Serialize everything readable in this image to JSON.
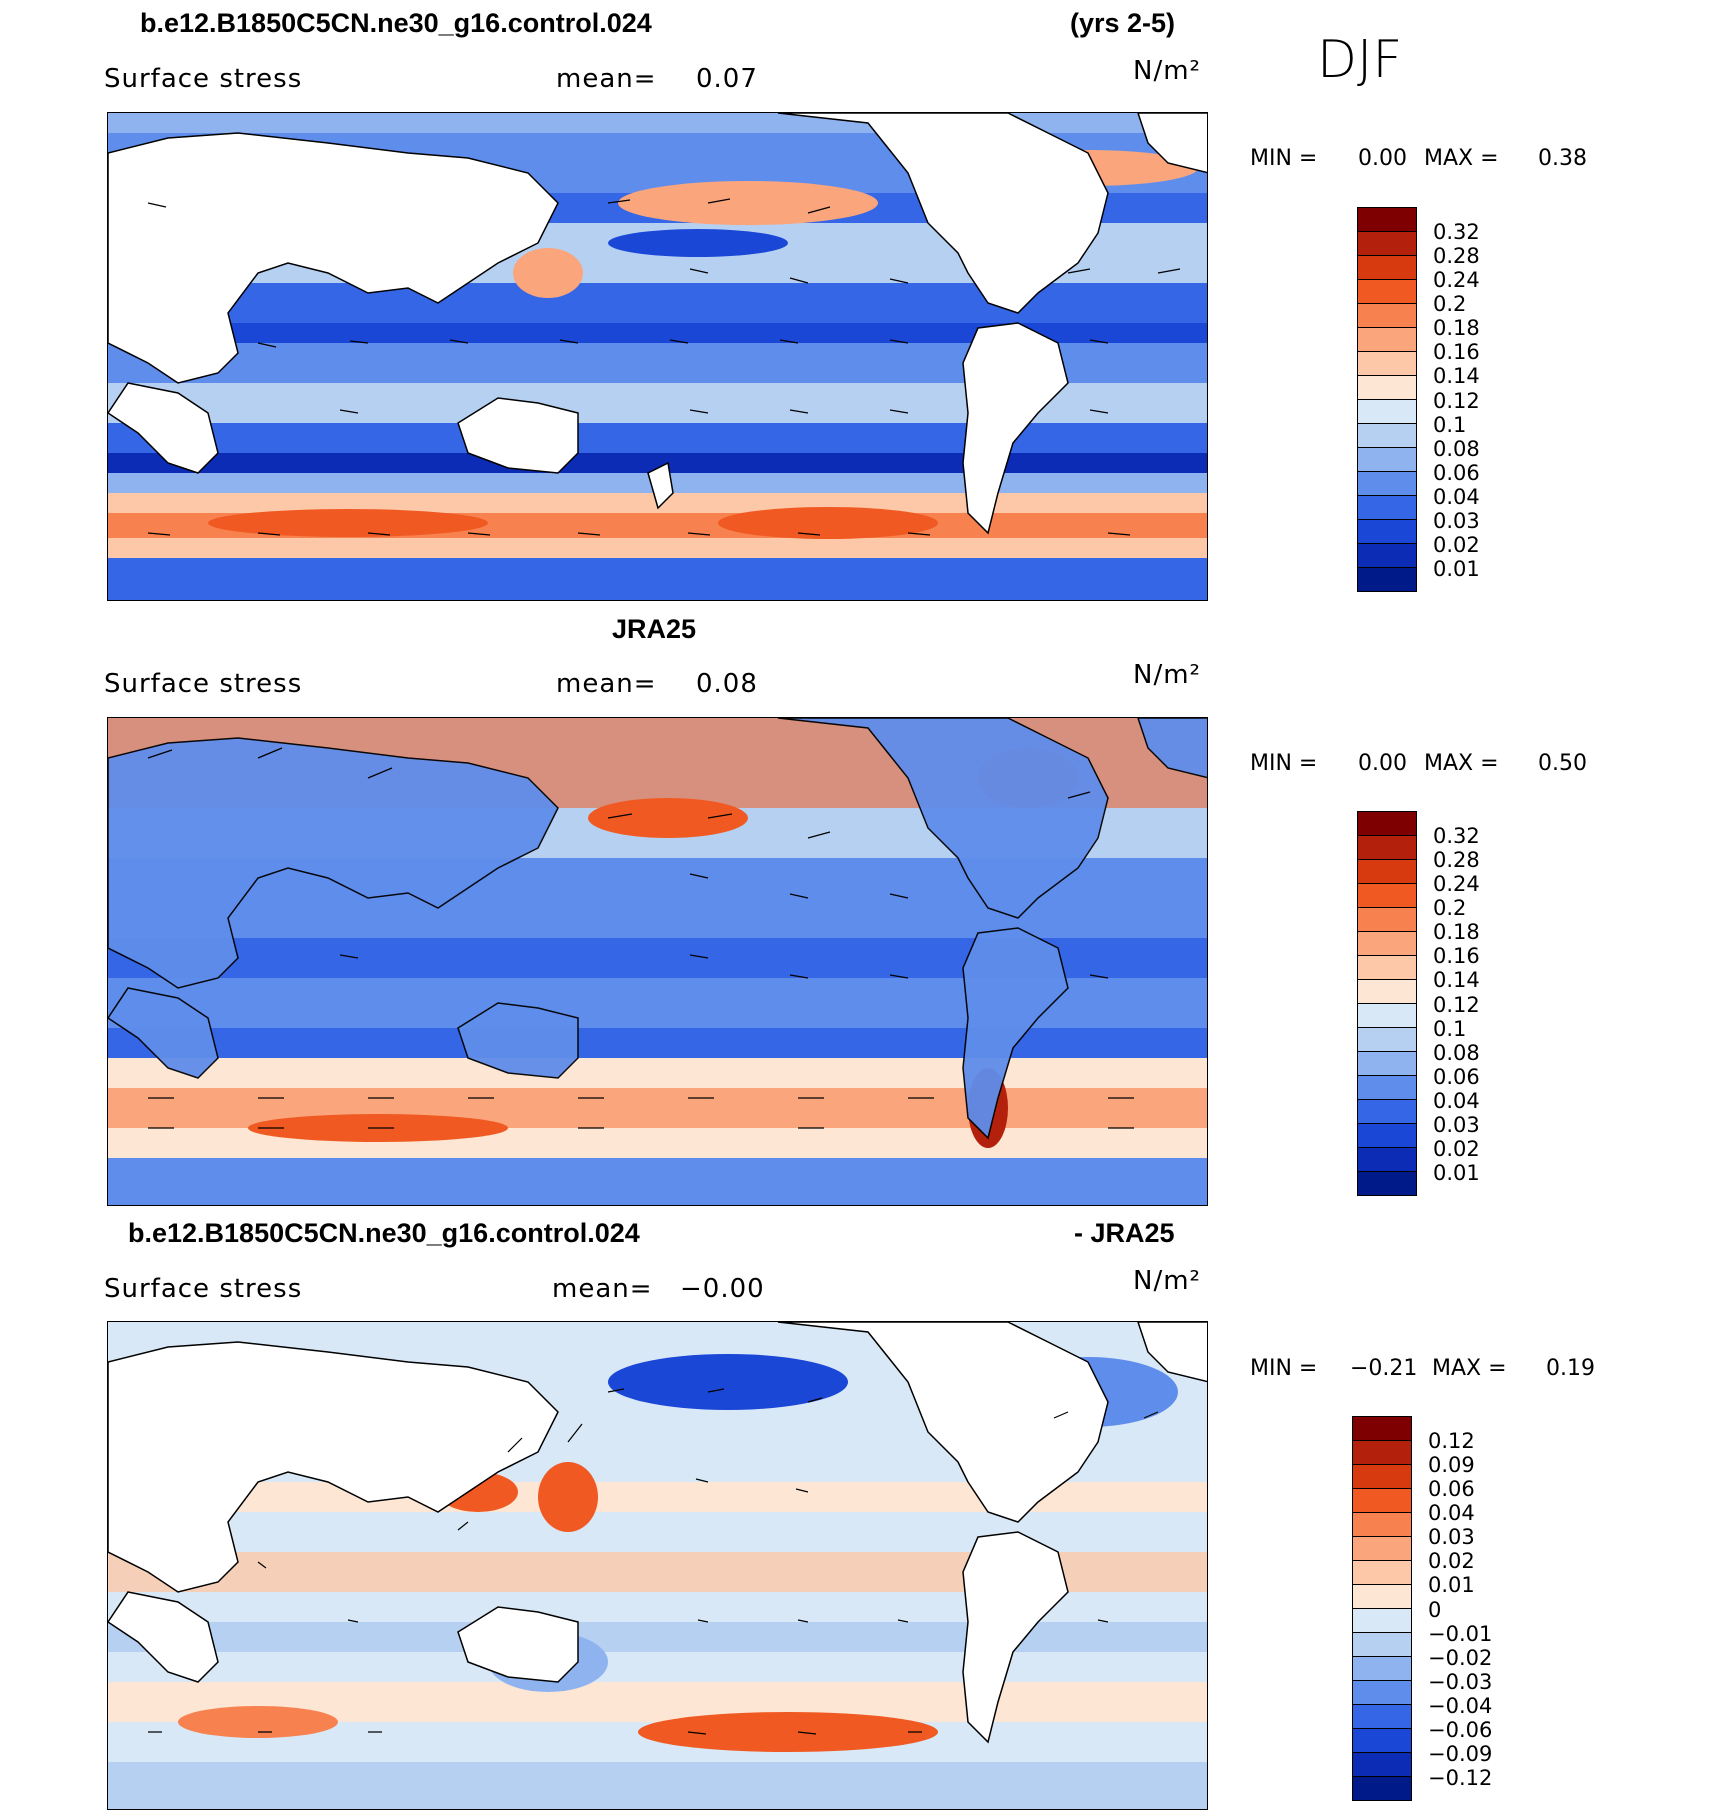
{
  "season": "DJF",
  "panels": [
    {
      "title_left": "b.e12.B1850C5CN.ne30_g16.control.024",
      "title_right": "(yrs 2-5)",
      "title_center": "",
      "variable": "Surface stress",
      "mean_label": "mean=",
      "mean_value": "0.07",
      "units": "N/m²",
      "min_label": "MIN =",
      "min_value": "0.00",
      "max_label": "MAX =",
      "max_value": "0.38",
      "colorbar_labels": [
        "0.32",
        "0.28",
        "0.24",
        "0.2",
        "0.18",
        "0.16",
        "0.14",
        "0.12",
        "0.1",
        "0.08",
        "0.06",
        "0.04",
        "0.03",
        "0.02",
        "0.01"
      ]
    },
    {
      "title_left": "",
      "title_right": "",
      "title_center": "JRA25",
      "variable": "Surface stress",
      "mean_label": "mean=",
      "mean_value": "0.08",
      "units": "N/m²",
      "min_label": "MIN =",
      "min_value": "0.00",
      "max_label": "MAX =",
      "max_value": "0.50",
      "colorbar_labels": [
        "0.32",
        "0.28",
        "0.24",
        "0.2",
        "0.18",
        "0.16",
        "0.14",
        "0.12",
        "0.1",
        "0.08",
        "0.06",
        "0.04",
        "0.03",
        "0.02",
        "0.01"
      ]
    },
    {
      "title_left": "b.e12.B1850C5CN.ne30_g16.control.024",
      "title_right": "- JRA25",
      "title_center": "",
      "variable": "Surface stress",
      "mean_label": "mean=",
      "mean_value": "−0.00",
      "units": "N/m²",
      "min_label": "MIN =",
      "min_value": "−0.21",
      "max_label": "MAX =",
      "max_value": "0.19",
      "colorbar_labels": [
        "0.12",
        "0.09",
        "0.06",
        "0.04",
        "0.03",
        "0.02",
        "0.01",
        "0",
        "−0.01",
        "−0.02",
        "−0.03",
        "−0.04",
        "−0.06",
        "−0.09",
        "−0.12"
      ]
    }
  ],
  "colors": {
    "scale16": [
      "#7f0000",
      "#b3200c",
      "#d83a10",
      "#f05a22",
      "#f7824f",
      "#fba57c",
      "#fdc8a8",
      "#fde6d4",
      "#d8e8f6",
      "#b6d0f2",
      "#8eb3ef",
      "#5f8deb",
      "#3566e6",
      "#1a47d6",
      "#0c2cb5",
      "#001a8a"
    ],
    "land": "#ffffff",
    "coast": "#000000",
    "arrow": "#000000"
  }
}
